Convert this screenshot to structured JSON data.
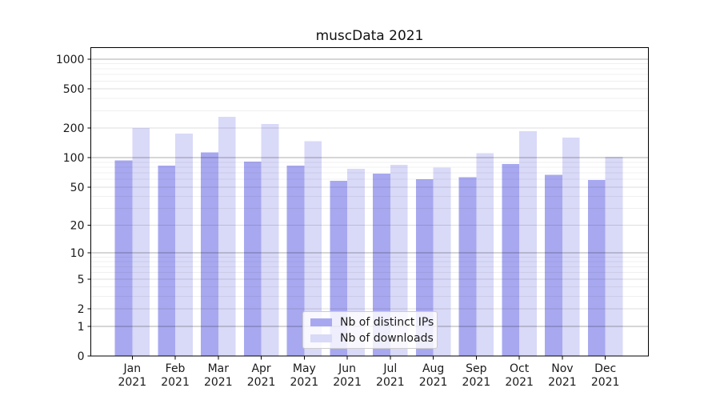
{
  "figure": {
    "title": "muscData 2021"
  },
  "colors": {
    "ip_bar": "#a8a8f0",
    "dl_bar": "#d9d9f8",
    "spine": "#000000",
    "text": "#1a1a1a",
    "grid_major": "rgba(0,0,0,0.32)",
    "grid_sub": "rgba(0,0,0,0.13)",
    "grid_minor": "rgba(0,0,0,0.06)",
    "legend_border": "#cccccc"
  },
  "legend": {
    "items": [
      {
        "label": "Nb of distinct IPs",
        "color_key": "ip_bar"
      },
      {
        "label": "Nb of downloads",
        "color_key": "dl_bar"
      }
    ]
  },
  "y_axis": {
    "tick_labels": [
      "1000",
      "500",
      "200",
      "100",
      "50",
      "20",
      "10",
      "5",
      "2",
      "1",
      "0"
    ],
    "tick_values": [
      1000,
      500,
      200,
      100,
      50,
      20,
      10,
      5,
      2,
      1,
      0
    ],
    "grid": {
      "major": [
        1,
        10,
        100,
        1000
      ],
      "sub": [
        2,
        5,
        20,
        50,
        200,
        500
      ],
      "minor": [
        3,
        4,
        6,
        7,
        8,
        9,
        30,
        40,
        60,
        70,
        80,
        90,
        300,
        400,
        600,
        700,
        800,
        900
      ]
    }
  },
  "x_axis": {
    "months": [
      "Jan",
      "Feb",
      "Mar",
      "Apr",
      "May",
      "Jun",
      "Jul",
      "Aug",
      "Sep",
      "Oct",
      "Nov",
      "Dec"
    ],
    "year": "2021"
  },
  "chart_data": {
    "type": "bar",
    "title": "muscData 2021",
    "categories": [
      "Jan 2021",
      "Feb 2021",
      "Mar 2021",
      "Apr 2021",
      "May 2021",
      "Jun 2021",
      "Jul 2021",
      "Aug 2021",
      "Sep 2021",
      "Oct 2021",
      "Nov 2021",
      "Dec 2021"
    ],
    "series": [
      {
        "name": "Nb of distinct IPs",
        "color": "#a8a8f0",
        "values": [
          94,
          83,
          113,
          91,
          83,
          58,
          69,
          60,
          63,
          86,
          67,
          59
        ]
      },
      {
        "name": "Nb of downloads",
        "color": "#d9d9f8",
        "values": [
          200,
          176,
          260,
          220,
          147,
          77,
          85,
          79,
          111,
          186,
          160,
          102
        ]
      }
    ],
    "xlabel": "",
    "ylabel": "",
    "y_ticks": [
      0,
      1,
      2,
      5,
      10,
      20,
      50,
      100,
      200,
      500,
      1000
    ],
    "y_scale": "symlog-like (position proportional to log10(value+1), 0 shown at axis bottom)",
    "ylim": [
      0,
      1400
    ],
    "grid": "on (horizontal, minor + major)",
    "legend_position": "lower center"
  }
}
